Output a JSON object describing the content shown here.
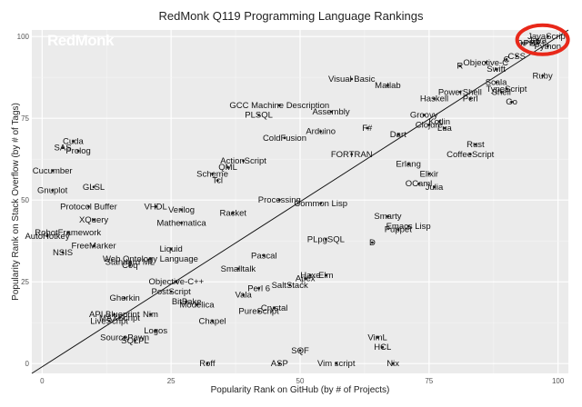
{
  "chart_data": {
    "type": "scatter",
    "title": "RedMonk Q119 Programming Language Rankings",
    "xlabel": "Popularity Rank on GitHub (by # of Projects)",
    "ylabel": "Popularity Rank on Stack Overflow (by # of Tags)",
    "watermark": "RedMonk",
    "xlim": [
      -2,
      102
    ],
    "ylim": [
      -3,
      102
    ],
    "xticks": [
      0,
      25,
      50,
      75,
      100
    ],
    "yticks": [
      0,
      25,
      50,
      75,
      100
    ],
    "grid": true,
    "trend_line": [
      [
        -2,
        -3
      ],
      [
        102,
        102
      ]
    ],
    "highlight_color": "#e8281a",
    "highlight_center": [
      97,
      99
    ],
    "points": [
      {
        "label": "JavaScript",
        "x": 98,
        "y": 100
      },
      {
        "label": "Java",
        "x": 96,
        "y": 99
      },
      {
        "label": "PHP",
        "x": 95,
        "y": 98
      },
      {
        "label": "Python",
        "x": 98,
        "y": 97
      },
      {
        "label": "C#",
        "x": 93,
        "y": 98
      },
      {
        "label": "C++",
        "x": 96,
        "y": 98
      },
      {
        "label": "CSS",
        "x": 92,
        "y": 94
      },
      {
        "label": "C",
        "x": 90,
        "y": 93
      },
      {
        "label": "Objective-C",
        "x": 86,
        "y": 92
      },
      {
        "label": "R",
        "x": 81,
        "y": 91
      },
      {
        "label": "Swift",
        "x": 88,
        "y": 90
      },
      {
        "label": "Ruby",
        "x": 97,
        "y": 88
      },
      {
        "label": "Scala",
        "x": 88,
        "y": 86
      },
      {
        "label": "TypeScript",
        "x": 90,
        "y": 84
      },
      {
        "label": "Shell",
        "x": 89,
        "y": 83
      },
      {
        "label": "PowerShell",
        "x": 81,
        "y": 83
      },
      {
        "label": "Go",
        "x": 91,
        "y": 80
      },
      {
        "label": "Perl",
        "x": 83,
        "y": 81
      },
      {
        "label": "Haskell",
        "x": 76,
        "y": 81
      },
      {
        "label": "Visual Basic",
        "x": 60,
        "y": 87
      },
      {
        "label": "Matlab",
        "x": 67,
        "y": 85
      },
      {
        "label": "Groovy",
        "x": 74,
        "y": 76
      },
      {
        "label": "Kotlin",
        "x": 77,
        "y": 74
      },
      {
        "label": "Clojure",
        "x": 75,
        "y": 73
      },
      {
        "label": "Lua",
        "x": 78,
        "y": 72
      },
      {
        "label": "GCC Machine Description",
        "x": 46,
        "y": 79
      },
      {
        "label": "Assembly",
        "x": 56,
        "y": 77
      },
      {
        "label": "PLSQL",
        "x": 42,
        "y": 76
      },
      {
        "label": "Arduino",
        "x": 54,
        "y": 71
      },
      {
        "label": "F#",
        "x": 63,
        "y": 72
      },
      {
        "label": "Dart",
        "x": 69,
        "y": 70
      },
      {
        "label": "ColdFusion",
        "x": 47,
        "y": 69
      },
      {
        "label": "Rust",
        "x": 84,
        "y": 67
      },
      {
        "label": "CoffeeScript",
        "x": 83,
        "y": 64
      },
      {
        "label": "FORTRAN",
        "x": 60,
        "y": 64
      },
      {
        "label": "Erlang",
        "x": 71,
        "y": 61
      },
      {
        "label": "Elixir",
        "x": 75,
        "y": 58
      },
      {
        "label": "OCaml",
        "x": 73,
        "y": 55
      },
      {
        "label": "Julia",
        "x": 76,
        "y": 54
      },
      {
        "label": "Cuda",
        "x": 6,
        "y": 68
      },
      {
        "label": "SAS",
        "x": 4,
        "y": 66
      },
      {
        "label": "Prolog",
        "x": 7,
        "y": 65
      },
      {
        "label": "Cucumber",
        "x": 2,
        "y": 59
      },
      {
        "label": "ActionScript",
        "x": 39,
        "y": 62
      },
      {
        "label": "QML",
        "x": 36,
        "y": 60
      },
      {
        "label": "Scheme",
        "x": 33,
        "y": 58
      },
      {
        "label": "Tcl",
        "x": 34,
        "y": 56
      },
      {
        "label": "GLSL",
        "x": 10,
        "y": 54
      },
      {
        "label": "Gnuplot",
        "x": 2,
        "y": 53
      },
      {
        "label": "Processing",
        "x": 46,
        "y": 50
      },
      {
        "label": "Common Lisp",
        "x": 54,
        "y": 49
      },
      {
        "label": "VHDL",
        "x": 22,
        "y": 48
      },
      {
        "label": "Verilog",
        "x": 27,
        "y": 47
      },
      {
        "label": "Racket",
        "x": 37,
        "y": 46
      },
      {
        "label": "Protocol Buffer",
        "x": 9,
        "y": 48
      },
      {
        "label": "XQuery",
        "x": 10,
        "y": 44
      },
      {
        "label": "Mathematica",
        "x": 27,
        "y": 43
      },
      {
        "label": "Smarty",
        "x": 67,
        "y": 45
      },
      {
        "label": "Emacs Lisp",
        "x": 71,
        "y": 42
      },
      {
        "label": "Puppet",
        "x": 69,
        "y": 41
      },
      {
        "label": "PLpgSQL",
        "x": 55,
        "y": 38
      },
      {
        "label": "D",
        "x": 64,
        "y": 37
      },
      {
        "label": "RobotFramework",
        "x": 5,
        "y": 40
      },
      {
        "label": "AutoHotkey",
        "x": 1,
        "y": 39
      },
      {
        "label": "FreeMarker",
        "x": 10,
        "y": 36
      },
      {
        "label": "NSIS",
        "x": 4,
        "y": 34
      },
      {
        "label": "Liquid",
        "x": 25,
        "y": 35
      },
      {
        "label": "Pascal",
        "x": 43,
        "y": 33
      },
      {
        "label": "Web Ontology Language",
        "x": 21,
        "y": 32
      },
      {
        "label": "Standard ML",
        "x": 17,
        "y": 31
      },
      {
        "label": "Coq",
        "x": 17,
        "y": 30
      },
      {
        "label": "Smalltalk",
        "x": 38,
        "y": 29
      },
      {
        "label": "Elm",
        "x": 55,
        "y": 27
      },
      {
        "label": "Haxe",
        "x": 52,
        "y": 27
      },
      {
        "label": "Apex",
        "x": 51,
        "y": 26
      },
      {
        "label": "SaltStack",
        "x": 48,
        "y": 24
      },
      {
        "label": "Objective-C++",
        "x": 26,
        "y": 25
      },
      {
        "label": "PostScript",
        "x": 25,
        "y": 22
      },
      {
        "label": "Perl 6",
        "x": 42,
        "y": 23
      },
      {
        "label": "Vala",
        "x": 39,
        "y": 21
      },
      {
        "label": "Gherkin",
        "x": 16,
        "y": 20
      },
      {
        "label": "BitBake",
        "x": 28,
        "y": 19
      },
      {
        "label": "Modelica",
        "x": 30,
        "y": 18
      },
      {
        "label": "Crystal",
        "x": 45,
        "y": 17
      },
      {
        "label": "PureScript",
        "x": 42,
        "y": 16
      },
      {
        "label": "API Blueprint",
        "x": 14,
        "y": 15
      },
      {
        "label": "Nim",
        "x": 21,
        "y": 15
      },
      {
        "label": "MAXScript",
        "x": 15,
        "y": 14
      },
      {
        "label": "LiveScript",
        "x": 13,
        "y": 13
      },
      {
        "label": "Chapel",
        "x": 33,
        "y": 13
      },
      {
        "label": "Logos",
        "x": 22,
        "y": 10
      },
      {
        "label": "SourcePawn",
        "x": 16,
        "y": 8
      },
      {
        "label": "SQLPL",
        "x": 18,
        "y": 7
      },
      {
        "label": "VimL",
        "x": 65,
        "y": 8
      },
      {
        "label": "HCL",
        "x": 66,
        "y": 5
      },
      {
        "label": "SQF",
        "x": 50,
        "y": 4
      },
      {
        "label": "Roff",
        "x": 32,
        "y": 0
      },
      {
        "label": "ASP",
        "x": 46,
        "y": 0
      },
      {
        "label": "Vim script",
        "x": 57,
        "y": 0
      },
      {
        "label": "Nix",
        "x": 68,
        "y": 0
      }
    ]
  }
}
